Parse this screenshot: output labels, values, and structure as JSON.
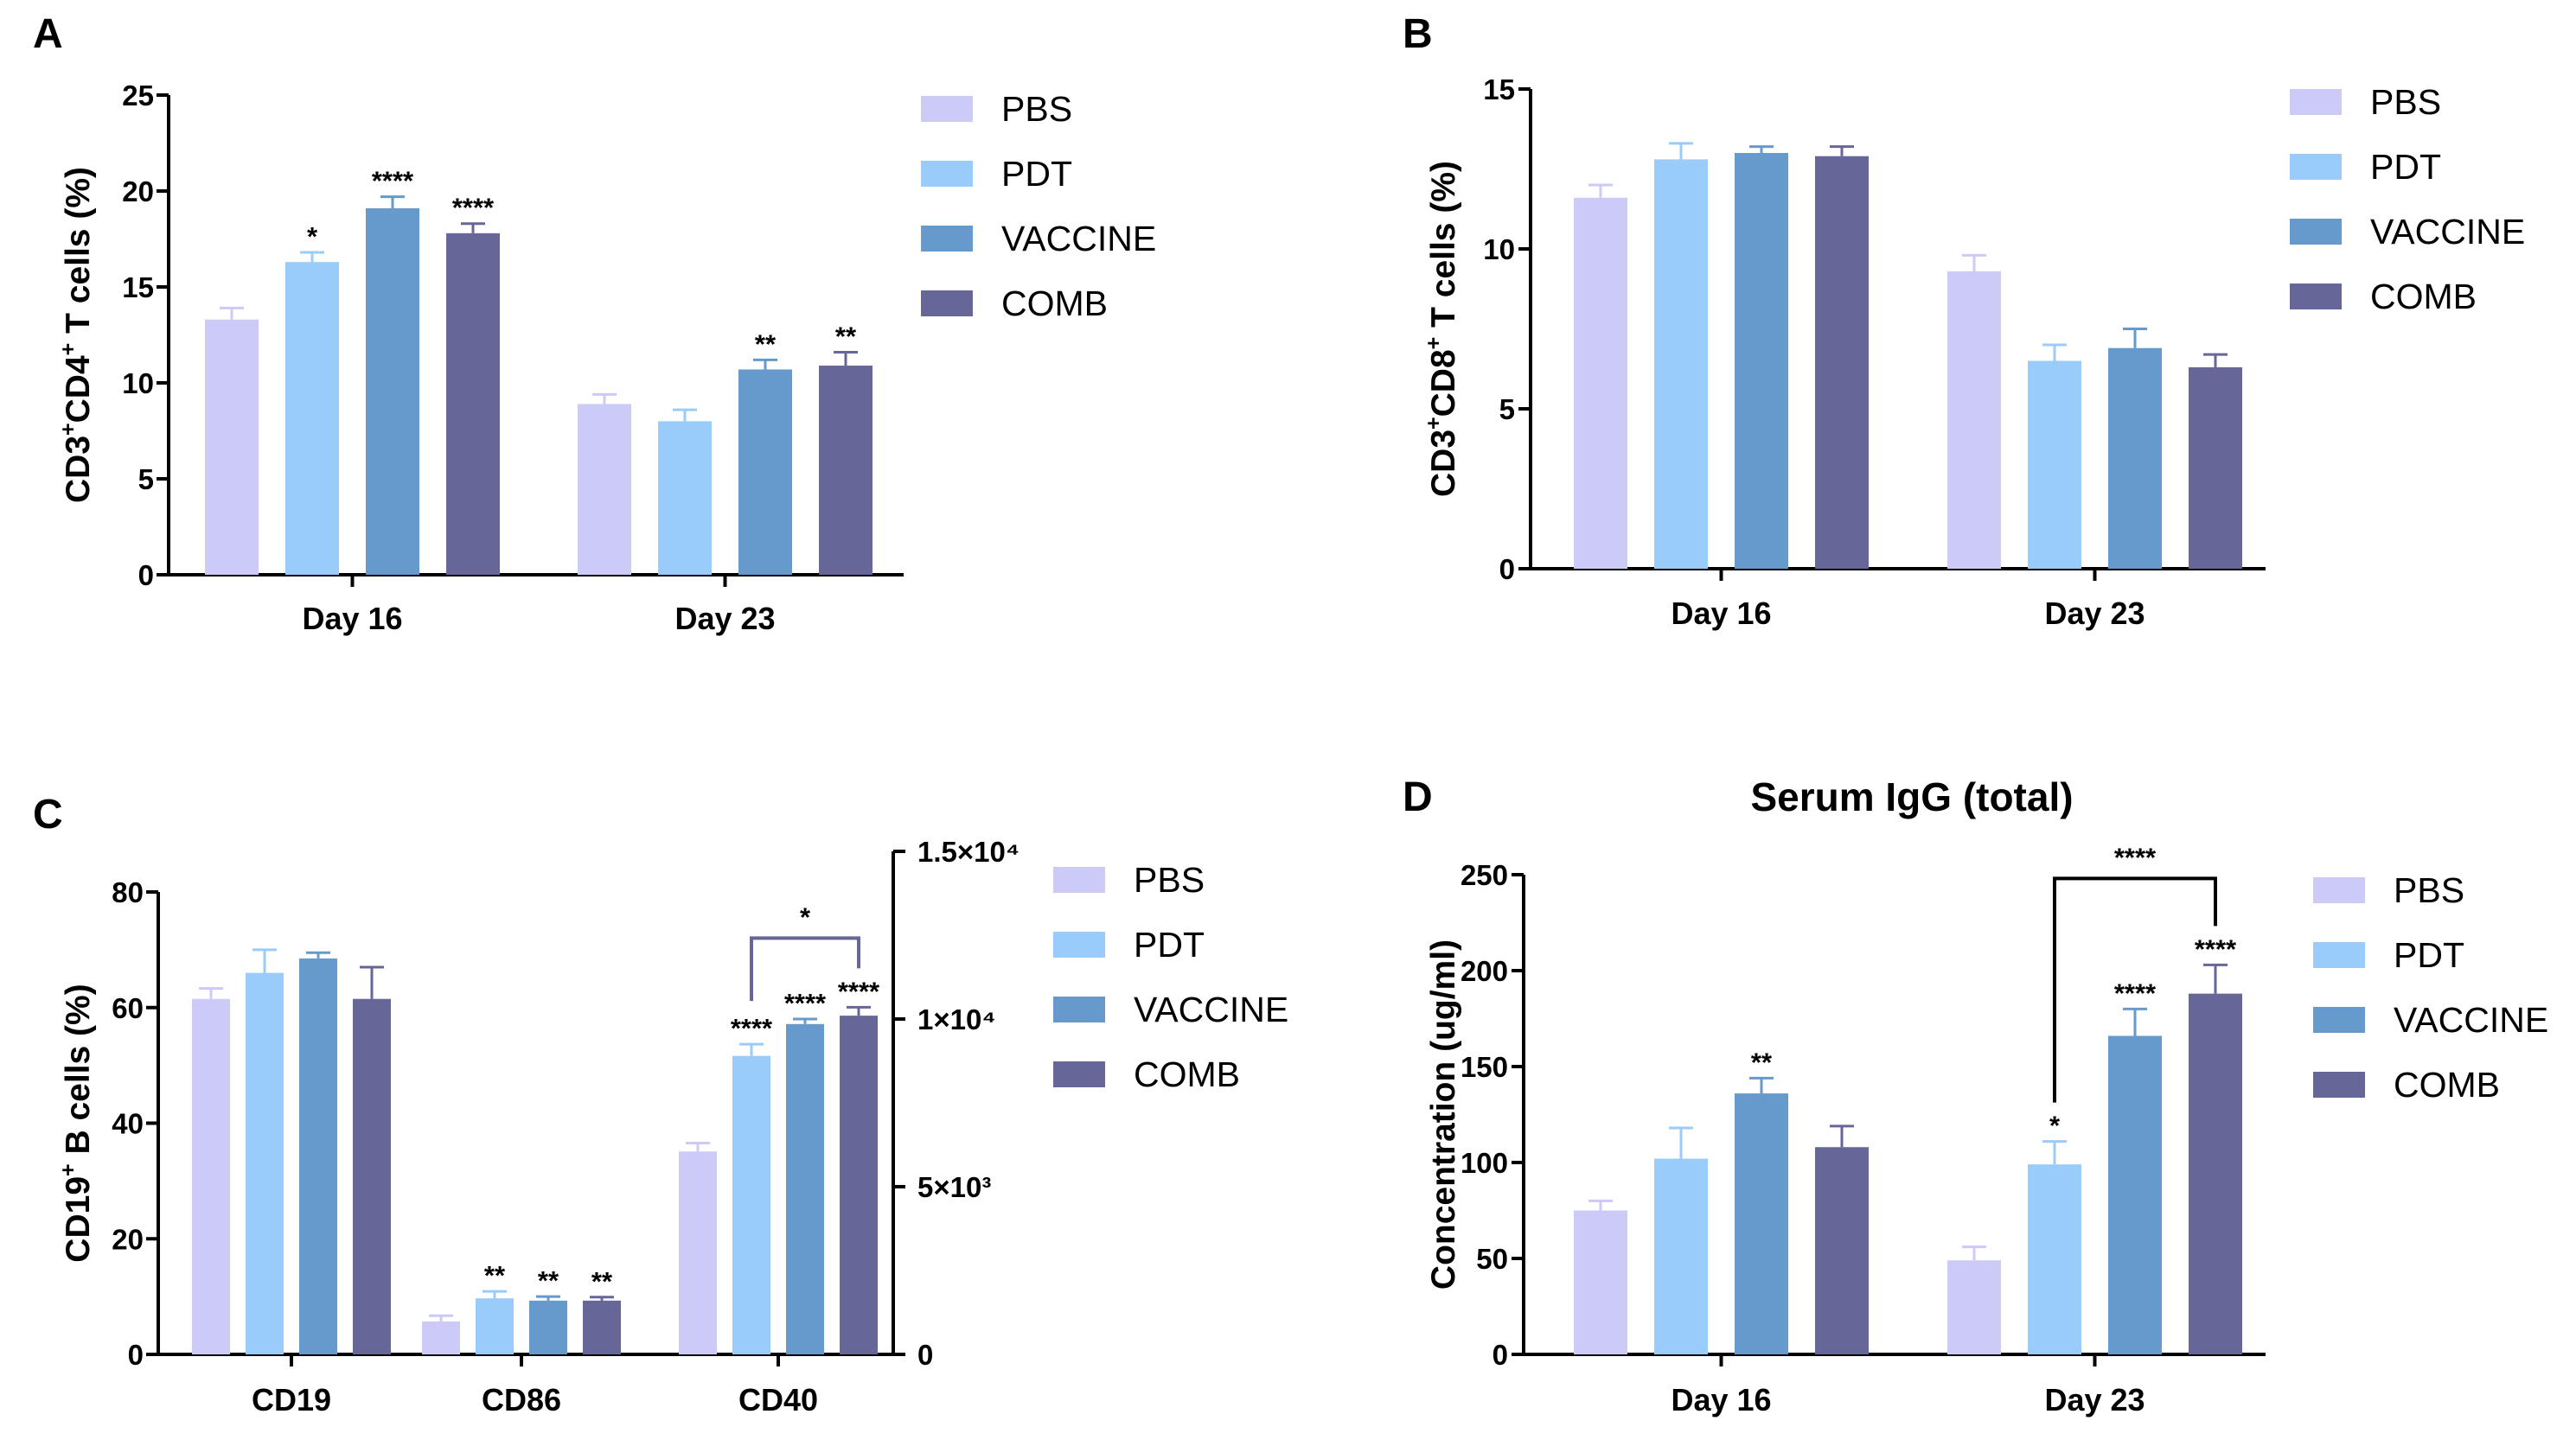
{
  "colors": {
    "PBS": "#cccbf7",
    "PDT": "#99ccfb",
    "VACCINE": "#6699cc",
    "COMB": "#666699",
    "axis": "#000000",
    "bracket_C": "#666699",
    "bracket_D": "#000000"
  },
  "legend": [
    "PBS",
    "PDT",
    "VACCINE",
    "COMB"
  ],
  "chart_data": [
    {
      "panel": "A",
      "type": "bar",
      "title": "",
      "ylabel": {
        "main": "CD3",
        "sup1": "+",
        "mid": "CD4",
        "sup2": "+",
        "tail": " T cells (%)"
      },
      "xlabel": "",
      "ylim": [
        0,
        25
      ],
      "yticks": [
        "0",
        "5",
        "10",
        "15",
        "20",
        "25"
      ],
      "categories": [
        "Day 16",
        "Day 23"
      ],
      "series": [
        {
          "name": "PBS",
          "values": [
            13.3,
            8.9
          ],
          "errors": [
            0.6,
            0.5
          ],
          "stars": [
            "",
            ""
          ]
        },
        {
          "name": "PDT",
          "values": [
            16.3,
            8.0
          ],
          "errors": [
            0.5,
            0.6
          ],
          "stars": [
            "*",
            ""
          ]
        },
        {
          "name": "VACCINE",
          "values": [
            19.1,
            10.7
          ],
          "errors": [
            0.6,
            0.5
          ],
          "stars": [
            "****",
            "**"
          ]
        },
        {
          "name": "COMB",
          "values": [
            17.8,
            10.9
          ],
          "errors": [
            0.5,
            0.7
          ],
          "stars": [
            "****",
            "**"
          ]
        }
      ]
    },
    {
      "panel": "B",
      "type": "bar",
      "title": "",
      "ylabel": {
        "main": "CD3",
        "sup1": "+",
        "mid": "CD8",
        "sup2": "+",
        "tail": " T cells (%)"
      },
      "xlabel": "",
      "ylim": [
        0,
        15
      ],
      "yticks": [
        "0",
        "5",
        "10",
        "15"
      ],
      "categories": [
        "Day 16",
        "Day 23"
      ],
      "series": [
        {
          "name": "PBS",
          "values": [
            11.6,
            9.3
          ],
          "errors": [
            0.4,
            0.5
          ],
          "stars": [
            "",
            ""
          ]
        },
        {
          "name": "PDT",
          "values": [
            12.8,
            6.5
          ],
          "errors": [
            0.5,
            0.5
          ],
          "stars": [
            "",
            ""
          ]
        },
        {
          "name": "VACCINE",
          "values": [
            13.0,
            6.9
          ],
          "errors": [
            0.2,
            0.6
          ],
          "stars": [
            "",
            ""
          ]
        },
        {
          "name": "COMB",
          "values": [
            12.9,
            6.3
          ],
          "errors": [
            0.3,
            0.4
          ],
          "stars": [
            "",
            ""
          ]
        }
      ]
    },
    {
      "panel": "C",
      "type": "bar",
      "title": "",
      "ylabel": {
        "main": "CD19",
        "sup1": "+",
        "mid": "",
        "sup2": "",
        "tail": " B cells (%)"
      },
      "xlabel": "",
      "ylim": [
        0,
        80
      ],
      "yticks": [
        "0",
        "20",
        "40",
        "60",
        "80"
      ],
      "y2lim": [
        0,
        15000
      ],
      "y2ticks": [
        "0",
        "5×10³",
        "1×10⁴",
        "1.5×10⁴"
      ],
      "categories": [
        "CD19",
        "CD86",
        "CD40"
      ],
      "secondary_axis_category": "CD40",
      "series": [
        {
          "name": "PBS",
          "values": [
            61.5,
            5.7,
            6050
          ],
          "errors": [
            1.8,
            1.0,
            250
          ],
          "stars": [
            "",
            "",
            ""
          ]
        },
        {
          "name": "PDT",
          "values": [
            66.0,
            9.7,
            8900
          ],
          "errors": [
            4.0,
            1.2,
            350
          ],
          "stars": [
            "",
            "**",
            "****"
          ]
        },
        {
          "name": "VACCINE",
          "values": [
            68.5,
            9.3,
            9850
          ],
          "errors": [
            1.0,
            0.7,
            150
          ],
          "stars": [
            "",
            "**",
            "****"
          ]
        },
        {
          "name": "COMB",
          "values": [
            61.5,
            9.3,
            10100
          ],
          "errors": [
            5.5,
            0.6,
            250
          ],
          "stars": [
            "",
            "**",
            "****"
          ]
        }
      ],
      "bracket": {
        "category": "CD40",
        "from": "PDT",
        "to": "COMB",
        "label": "*"
      }
    },
    {
      "panel": "D",
      "type": "bar",
      "title": "Serum IgG (total)",
      "ylabel": {
        "main": "Concentration (ug/ml)",
        "sup1": "",
        "mid": "",
        "sup2": "",
        "tail": ""
      },
      "xlabel": "",
      "ylim": [
        0,
        250
      ],
      "yticks": [
        "0",
        "50",
        "100",
        "150",
        "200",
        "250"
      ],
      "categories": [
        "Day 16",
        "Day 23"
      ],
      "series": [
        {
          "name": "PBS",
          "values": [
            75,
            49
          ],
          "errors": [
            5,
            7
          ],
          "stars": [
            "",
            ""
          ]
        },
        {
          "name": "PDT",
          "values": [
            102,
            99
          ],
          "errors": [
            16,
            12
          ],
          "stars": [
            "",
            "*"
          ]
        },
        {
          "name": "VACCINE",
          "values": [
            136,
            166
          ],
          "errors": [
            8,
            14
          ],
          "stars": [
            "**",
            "****"
          ]
        },
        {
          "name": "COMB",
          "values": [
            108,
            188
          ],
          "errors": [
            11,
            15
          ],
          "stars": [
            "",
            "****"
          ]
        }
      ],
      "bracket": {
        "category": "Day 23",
        "from": "PDT",
        "to": "COMB",
        "label": "****"
      }
    }
  ]
}
